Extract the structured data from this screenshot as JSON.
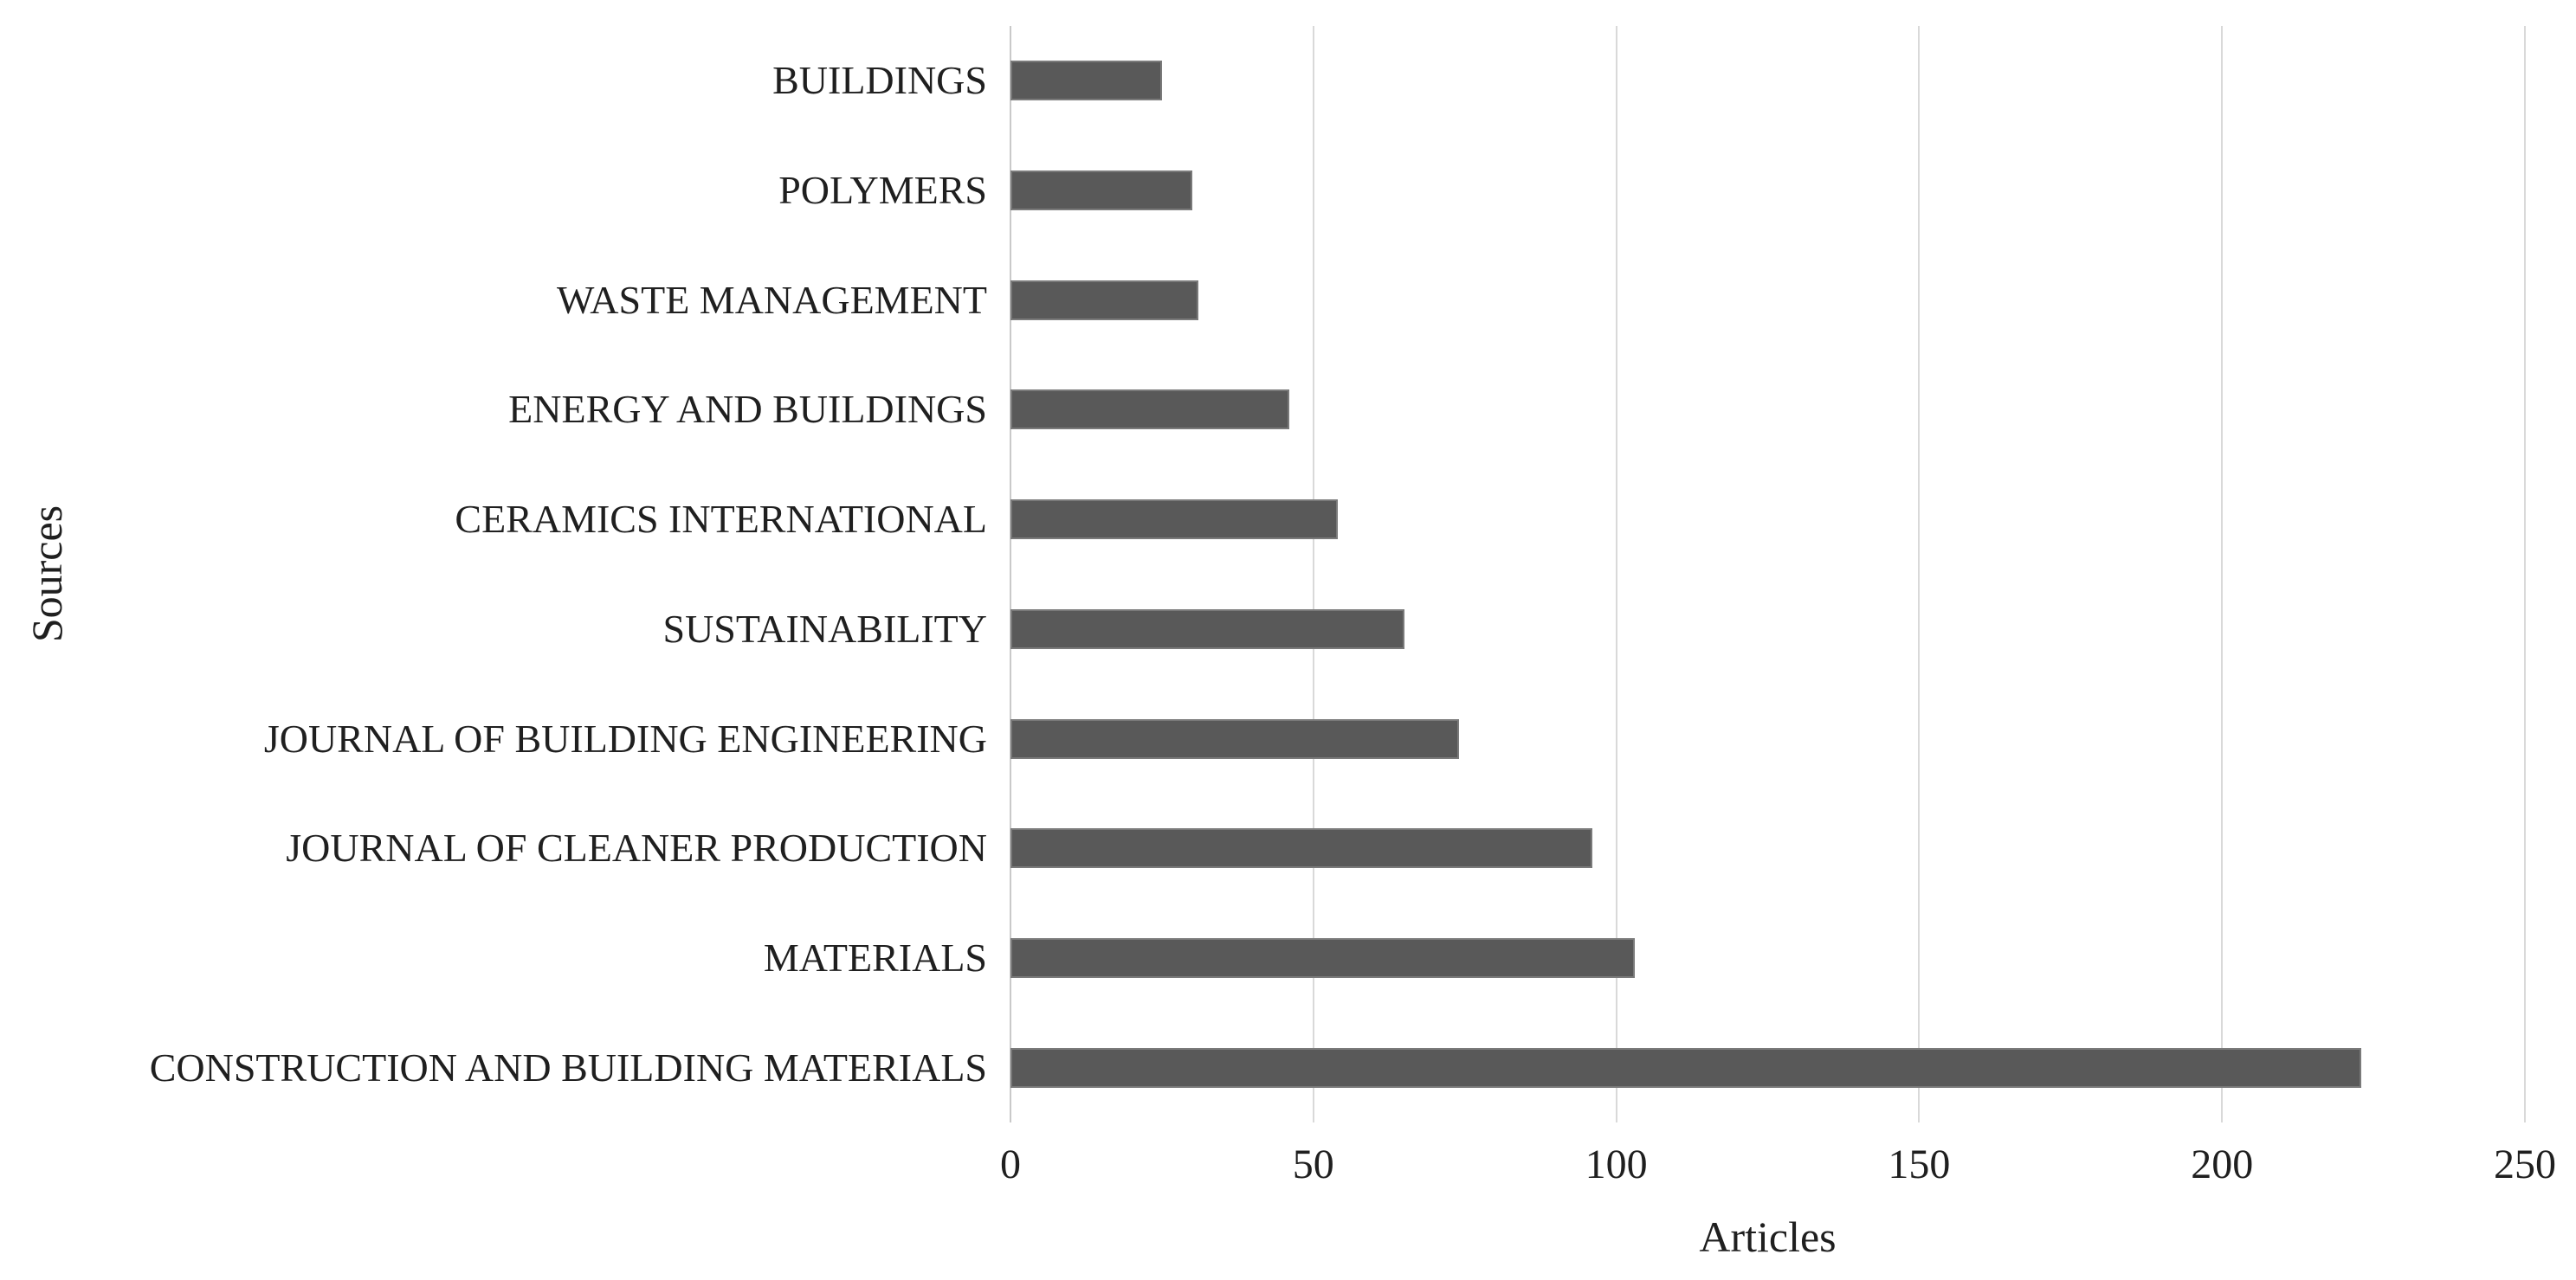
{
  "figure": {
    "background": "#ffffff"
  },
  "chart_data": {
    "type": "bar",
    "orientation": "horizontal",
    "title": "",
    "categories": [
      "BUILDINGS",
      "POLYMERS",
      "WASTE MANAGEMENT",
      "ENERGY AND BUILDINGS",
      "CERAMICS INTERNATIONAL",
      "SUSTAINABILITY",
      "JOURNAL OF BUILDING ENGINEERING",
      "JOURNAL OF CLEANER PRODUCTION",
      "MATERIALS",
      "CONSTRUCTION AND BUILDING MATERIALS"
    ],
    "values": [
      25,
      30,
      31,
      46,
      54,
      65,
      74,
      96,
      103,
      223
    ],
    "xlabel": "Articles",
    "ylabel": "Sources",
    "xlim": [
      0,
      250
    ],
    "xticks": [
      0,
      50,
      100,
      150,
      200,
      250
    ],
    "grid": true,
    "legend_position": "none",
    "bar_color": "#595959",
    "bar_border_color": "#7a7a7a",
    "gridline_color": "#d9d9d9",
    "axis_line_color": "#c9c9c9",
    "text_color": "#1f1f1f"
  }
}
